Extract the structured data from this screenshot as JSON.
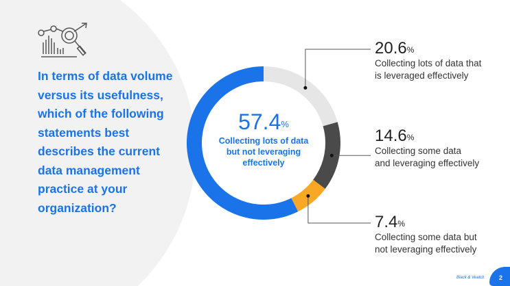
{
  "question": "In terms of data volume versus its usefulness, which of the following statements best describes the current data management practice at your organization?",
  "chart_data": {
    "type": "pie",
    "donut": true,
    "center": {
      "value": "57.4",
      "unit": "%",
      "label": "Collecting lots of data but not leveraging effectively"
    },
    "slices": [
      {
        "label": "Collecting lots of data that is leveraged effectively",
        "value": 20.6,
        "color": "#e6e6e6"
      },
      {
        "label": "Collecting some data and leveraging effectively",
        "value": 14.6,
        "color": "#4a4a4a"
      },
      {
        "label": "Collecting some data but not leveraging effectively",
        "value": 7.4,
        "color": "#f9a825"
      },
      {
        "label": "Collecting lots of data but not leveraging effectively",
        "value": 57.4,
        "color": "#1a73e8"
      }
    ]
  },
  "callouts": [
    {
      "value": "20.6",
      "unit": "%",
      "line1": "Collecting lots of data that",
      "line2": "is leveraged effectively"
    },
    {
      "value": "14.6",
      "unit": "%",
      "line1": "Collecting some data",
      "line2": "and leveraging effectively"
    },
    {
      "value": "7.4",
      "unit": "%",
      "line1": "Collecting some data but",
      "line2": "not leveraging effectively"
    }
  ],
  "footer": {
    "brand": "Black & Veatch",
    "page": "2"
  }
}
